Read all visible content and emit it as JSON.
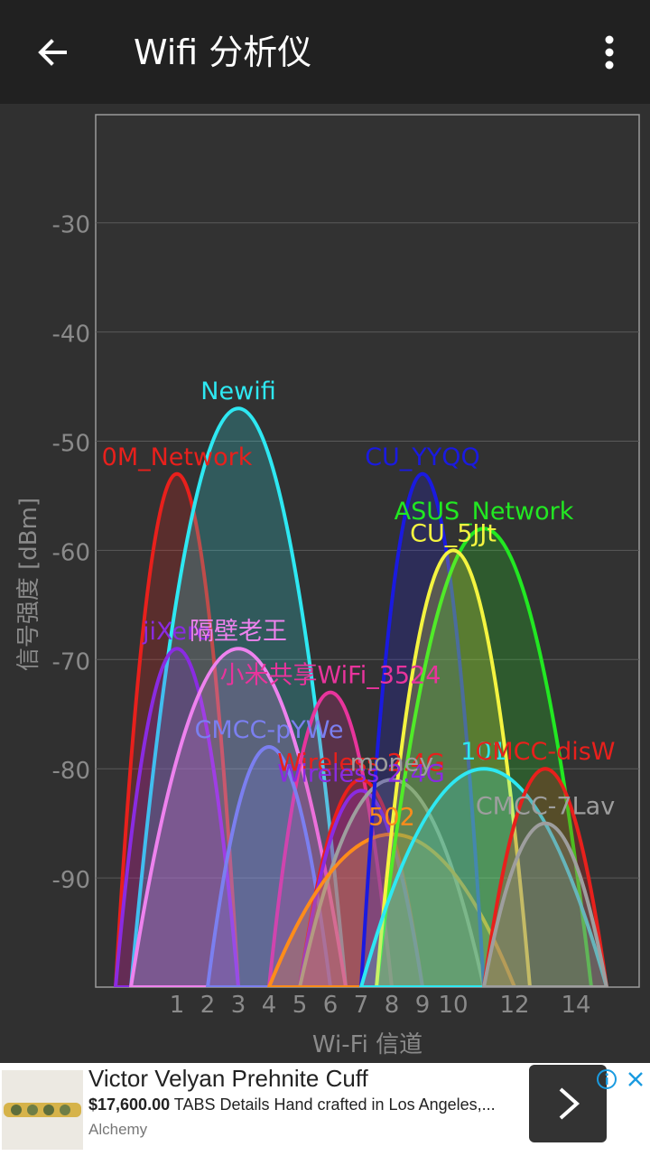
{
  "app_bar": {
    "title": "Wifi 分析仪",
    "back_icon": "arrow-left-icon",
    "menu_icon": "more-vert-icon"
  },
  "chart_data": {
    "type": "area",
    "ylabel": "信号强度 [dBm]",
    "xlabel": "Wi-Fi 信道",
    "ylim": [
      -100,
      -20
    ],
    "y_ticks": [
      "-30",
      "-40",
      "-50",
      "-60",
      "-70",
      "-80",
      "-90"
    ],
    "y_tick_values": [
      -30,
      -40,
      -50,
      -60,
      -70,
      -80,
      -90
    ],
    "x_ticks": [
      "1",
      "2",
      "3",
      "4",
      "5",
      "6",
      "7",
      "8",
      "9",
      "10",
      "12",
      "14"
    ],
    "x_tick_values": [
      1,
      2,
      3,
      4,
      5,
      6,
      7,
      8,
      9,
      10,
      12,
      14
    ],
    "grid": true,
    "series": [
      {
        "name": "0M_Network",
        "channel": 1,
        "width": 4,
        "level": -53,
        "color": "#e8201c"
      },
      {
        "name": "Newifi",
        "channel": 3,
        "width": 7,
        "level": -47,
        "color": "#2ee8f2"
      },
      {
        "name": "jiXero",
        "channel": 1,
        "width": 4,
        "level": -69,
        "color": "#8a2be2"
      },
      {
        "name": "隔壁老王",
        "channel": 3,
        "width": 7,
        "level": -69,
        "color": "#ee82ee"
      },
      {
        "name": "小米共享WiFi_3524",
        "channel": 6,
        "width": 4,
        "level": -73,
        "color": "#e8349c"
      },
      {
        "name": "CMCC-pYWe",
        "channel": 4,
        "width": 4,
        "level": -78,
        "color": "#7b7ff0"
      },
      {
        "name": "Wireless 2.4G",
        "channel": 7,
        "width": 4,
        "level": -81,
        "color": "#e8201c"
      },
      {
        "name": "Wireless 2.4G",
        "channel": 7,
        "width": 4,
        "level": -82,
        "color": "#8a2be2"
      },
      {
        "name": "money",
        "channel": 8,
        "width": 6,
        "level": -81,
        "color": "#9e9e9e"
      },
      {
        "name": "502",
        "channel": 8,
        "width": 8,
        "level": -86,
        "color": "#ff8c1a"
      },
      {
        "name": "CU_YYQQ",
        "channel": 9,
        "width": 4,
        "level": -53,
        "color": "#1a1ae0"
      },
      {
        "name": "ASUS_Network",
        "channel": 11,
        "width": 7,
        "level": -58,
        "color": "#22e822"
      },
      {
        "name": "CU_5JJt",
        "channel": 10,
        "width": 5,
        "level": -60,
        "color": "#f4f440"
      },
      {
        "name": "101",
        "channel": 11,
        "width": 8,
        "level": -80,
        "color": "#2ee8f2"
      },
      {
        "name": "CMCC-disW",
        "channel": 13,
        "width": 4,
        "level": -80,
        "color": "#e8201c"
      },
      {
        "name": "CMCC-7Lav",
        "channel": 13,
        "width": 4,
        "level": -85,
        "color": "#9e9e9e"
      }
    ]
  },
  "ad": {
    "title": "Victor Velyan Prehnite Cuff",
    "price": "$17,600.00",
    "description": "TABS Details Hand crafted in Los Angeles,...",
    "source": "Alchemy",
    "arrow_icon": "chevron-right-icon",
    "info_icon": "info-icon",
    "close_icon": "close-icon"
  }
}
